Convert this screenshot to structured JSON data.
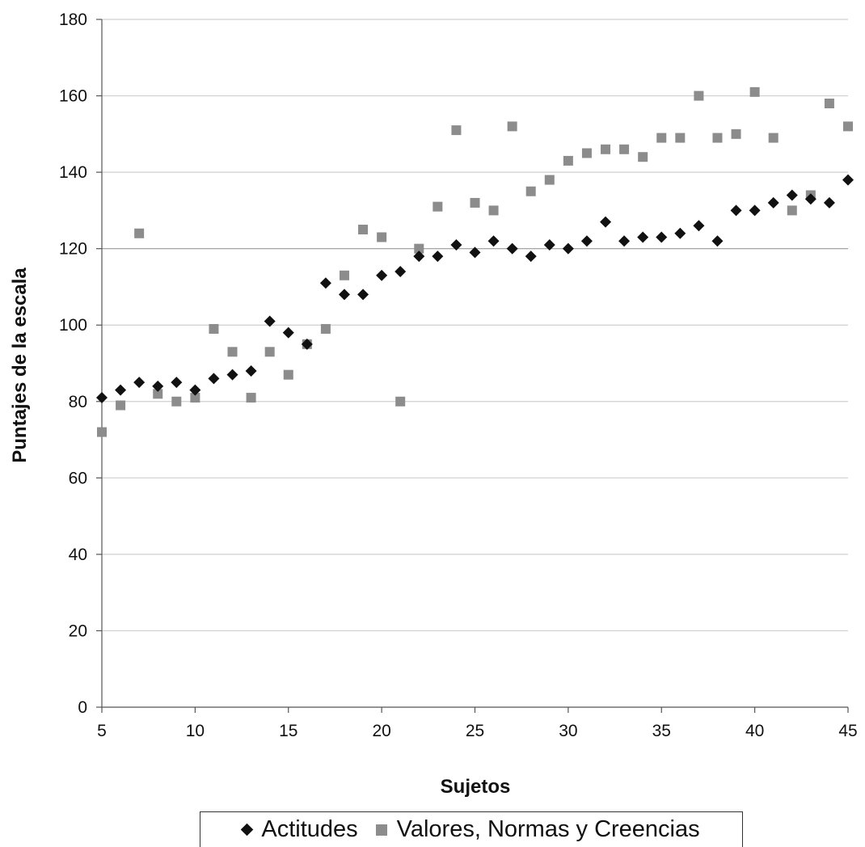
{
  "chart_data": {
    "type": "scatter",
    "xlabel": "Sujetos",
    "ylabel": "Puntajes de la escala",
    "xlim": [
      5,
      45
    ],
    "ylim": [
      0,
      180
    ],
    "x_ticks": [
      5,
      10,
      15,
      20,
      25,
      30,
      35,
      40,
      45
    ],
    "y_ticks": [
      0,
      20,
      40,
      60,
      80,
      100,
      120,
      140,
      160,
      180
    ],
    "grid": "horizontal",
    "legend_position": "bottom",
    "series": [
      {
        "name": "Actitudes",
        "marker": "diamond",
        "color": "#111111",
        "points": [
          [
            5,
            81
          ],
          [
            6,
            83
          ],
          [
            7,
            85
          ],
          [
            8,
            84
          ],
          [
            9,
            85
          ],
          [
            10,
            83
          ],
          [
            11,
            86
          ],
          [
            12,
            87
          ],
          [
            13,
            88
          ],
          [
            14,
            101
          ],
          [
            15,
            98
          ],
          [
            16,
            95
          ],
          [
            17,
            111
          ],
          [
            18,
            108
          ],
          [
            19,
            108
          ],
          [
            20,
            113
          ],
          [
            21,
            114
          ],
          [
            22,
            118
          ],
          [
            23,
            118
          ],
          [
            24,
            121
          ],
          [
            25,
            119
          ],
          [
            26,
            122
          ],
          [
            27,
            120
          ],
          [
            28,
            118
          ],
          [
            29,
            121
          ],
          [
            30,
            120
          ],
          [
            31,
            122
          ],
          [
            32,
            127
          ],
          [
            33,
            122
          ],
          [
            34,
            123
          ],
          [
            35,
            123
          ],
          [
            36,
            124
          ],
          [
            37,
            126
          ],
          [
            38,
            122
          ],
          [
            39,
            130
          ],
          [
            40,
            130
          ],
          [
            41,
            132
          ],
          [
            42,
            134
          ],
          [
            43,
            133
          ],
          [
            44,
            132
          ],
          [
            45,
            138
          ]
        ]
      },
      {
        "name": "Valores, Normas y Creencias",
        "marker": "square",
        "color": "#8c8c8c",
        "points": [
          [
            5,
            72
          ],
          [
            6,
            79
          ],
          [
            7,
            124
          ],
          [
            8,
            82
          ],
          [
            9,
            80
          ],
          [
            10,
            81
          ],
          [
            11,
            99
          ],
          [
            12,
            93
          ],
          [
            13,
            81
          ],
          [
            14,
            93
          ],
          [
            15,
            87
          ],
          [
            16,
            95
          ],
          [
            17,
            99
          ],
          [
            18,
            113
          ],
          [
            19,
            125
          ],
          [
            20,
            123
          ],
          [
            21,
            80
          ],
          [
            22,
            120
          ],
          [
            23,
            131
          ],
          [
            24,
            151
          ],
          [
            25,
            132
          ],
          [
            26,
            130
          ],
          [
            27,
            152
          ],
          [
            28,
            135
          ],
          [
            29,
            138
          ],
          [
            30,
            143
          ],
          [
            31,
            145
          ],
          [
            32,
            146
          ],
          [
            33,
            146
          ],
          [
            34,
            144
          ],
          [
            35,
            149
          ],
          [
            36,
            149
          ],
          [
            37,
            160
          ],
          [
            38,
            149
          ],
          [
            39,
            150
          ],
          [
            40,
            161
          ],
          [
            41,
            149
          ],
          [
            42,
            130
          ],
          [
            43,
            134
          ],
          [
            44,
            158
          ],
          [
            45,
            152
          ]
        ]
      }
    ]
  }
}
